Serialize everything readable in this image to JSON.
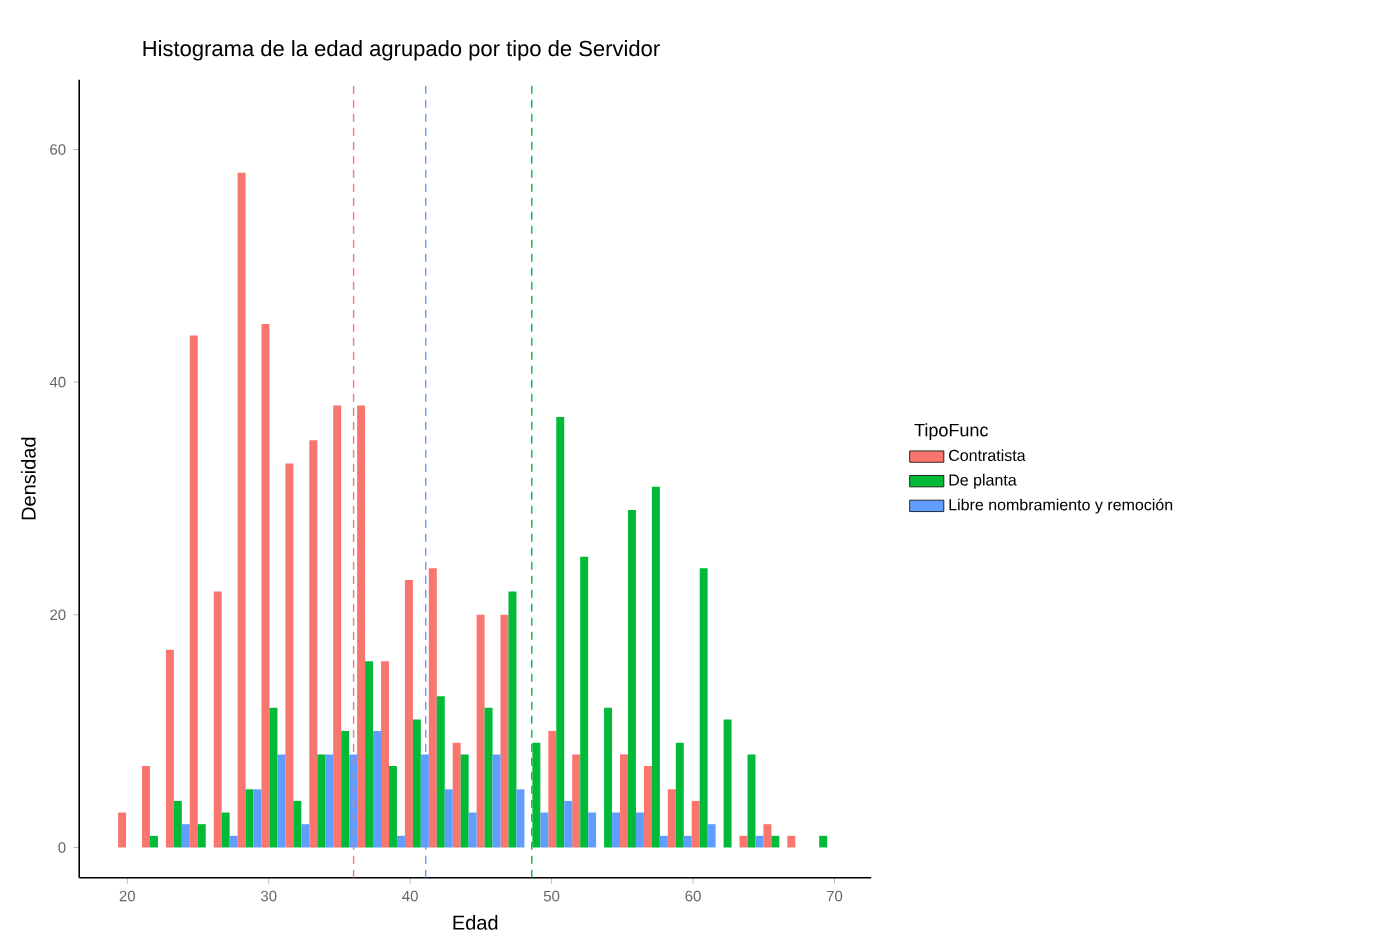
{
  "chart_data": {
    "type": "histogram",
    "title": "Histograma de la edad agrupado por tipo de Servidor",
    "xlabel": "Edad",
    "ylabel": "Densidad",
    "legend_title": "TipoFunc",
    "bins": [
      19.35,
      21.04,
      22.73,
      24.42,
      26.11,
      27.8,
      29.49,
      31.18,
      32.87,
      34.56,
      36.25,
      37.94,
      39.63,
      41.32,
      43.01,
      44.7,
      46.39,
      48.08,
      49.77,
      51.46,
      53.15,
      54.84,
      56.53,
      58.22,
      59.91,
      61.6,
      63.29,
      64.98,
      66.67,
      68.36,
      70.05
    ],
    "series": [
      {
        "name": "Contratista",
        "color": "#f8766d",
        "values": [
          3,
          7,
          17,
          44,
          22,
          58,
          45,
          33,
          35,
          38,
          38,
          16,
          23,
          24,
          9,
          20,
          20,
          0,
          10,
          8,
          0,
          8,
          7,
          5,
          4,
          0,
          1,
          2,
          1,
          0
        ]
      },
      {
        "name": "De planta",
        "color": "#00ba38",
        "values": [
          0,
          1,
          4,
          2,
          3,
          5,
          12,
          4,
          8,
          10,
          16,
          7,
          11,
          13,
          8,
          12,
          22,
          9,
          37,
          25,
          12,
          29,
          31,
          9,
          24,
          11,
          8,
          1,
          0,
          1
        ]
      },
      {
        "name": "Libre nombramiento y remoción",
        "color": "#619cff",
        "values": [
          0,
          0,
          2,
          0,
          1,
          5,
          8,
          2,
          8,
          8,
          10,
          1,
          8,
          5,
          3,
          8,
          5,
          3,
          4,
          3,
          3,
          3,
          1,
          1,
          2,
          0,
          1,
          0,
          0,
          0
        ]
      }
    ],
    "xlim": [
      16.6,
      72.6
    ],
    "ylim": [
      -2.6,
      66
    ],
    "xticks": [
      20,
      30,
      40,
      50,
      60,
      70
    ],
    "yticks": [
      0,
      20,
      40,
      60
    ],
    "grid": false,
    "legend": "right",
    "ref_lines": [
      {
        "axis": "x",
        "value": 36.0,
        "color": "#f8766d",
        "line_style": "dashed"
      },
      {
        "axis": "x",
        "value": 41.1,
        "color": "#619cff",
        "line_style": "dashed"
      },
      {
        "axis": "x",
        "value": 48.6,
        "color": "#00ba38",
        "line_style": "dashed"
      }
    ]
  }
}
